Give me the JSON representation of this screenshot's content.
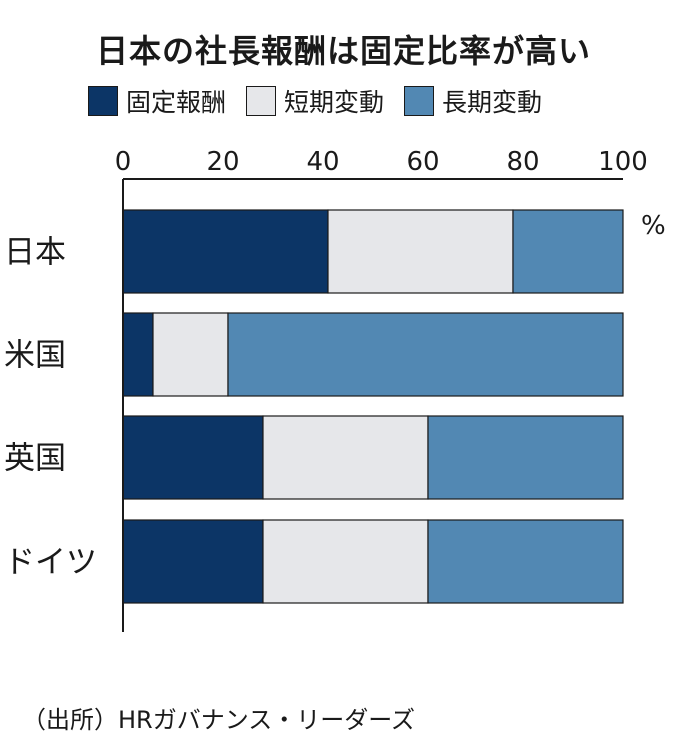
{
  "chart_data": {
    "type": "bar",
    "orientation": "horizontal",
    "stacked": true,
    "title": "日本の社長報酬は固定比率が高い",
    "unit": "%",
    "categories": [
      "日本",
      "米国",
      "英国",
      "ドイツ"
    ],
    "series": [
      {
        "name": "固定報酬",
        "color": "#0c3566",
        "values": [
          41,
          6,
          28,
          28
        ]
      },
      {
        "name": "短期変動",
        "color": "#e6e7ea",
        "values": [
          37,
          15,
          33,
          33
        ]
      },
      {
        "name": "長期変動",
        "color": "#5288b3",
        "values": [
          22,
          79,
          39,
          39
        ]
      }
    ],
    "xlim": [
      0,
      100
    ],
    "xticks": [
      "0",
      "20",
      "40",
      "60",
      "80",
      "100"
    ],
    "legend_position": "top",
    "grid": false
  },
  "source": "（出所）HRガバナンス・リーダーズ"
}
